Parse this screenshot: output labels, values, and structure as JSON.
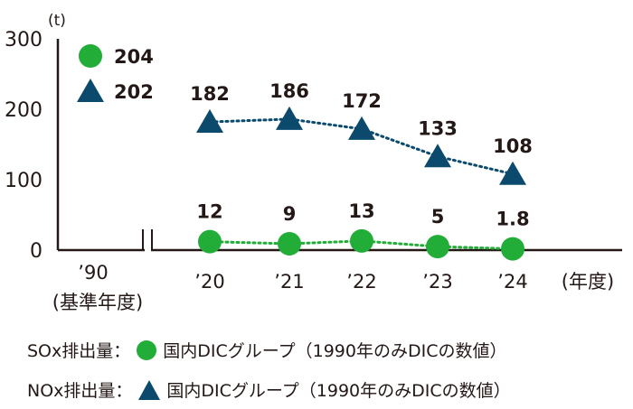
{
  "chart_data": {
    "type": "line",
    "unit": "(t)",
    "x_unit": "(年度)",
    "categories": [
      "’90",
      "’20",
      "’21",
      "’22",
      "’23",
      "’24"
    ],
    "baseline_note": "(基準年度)",
    "ylim": [
      0,
      300
    ],
    "yticks": [
      "0",
      "100",
      "200",
      "300"
    ],
    "grid": false,
    "axis_break": true,
    "series": [
      {
        "key": "sox",
        "marker": "circle",
        "color": "#22ac38",
        "values": [
          204,
          12,
          9,
          13,
          5,
          1.8
        ],
        "labels": [
          "204",
          "12",
          "9",
          "13",
          "5",
          "1.8"
        ]
      },
      {
        "key": "nox",
        "marker": "triangle",
        "color": "#0b4a6d",
        "values": [
          202,
          182,
          186,
          172,
          133,
          108
        ],
        "labels": [
          "202",
          "182",
          "186",
          "172",
          "133",
          "108"
        ]
      }
    ],
    "legend": [
      {
        "prefix": "SOx排出量：",
        "text": "国内DICグループ（1990年のみDICの数値）"
      },
      {
        "prefix": "NOx排出量：",
        "text": "国内DICグループ（1990年のみDICの数値）"
      }
    ]
  }
}
